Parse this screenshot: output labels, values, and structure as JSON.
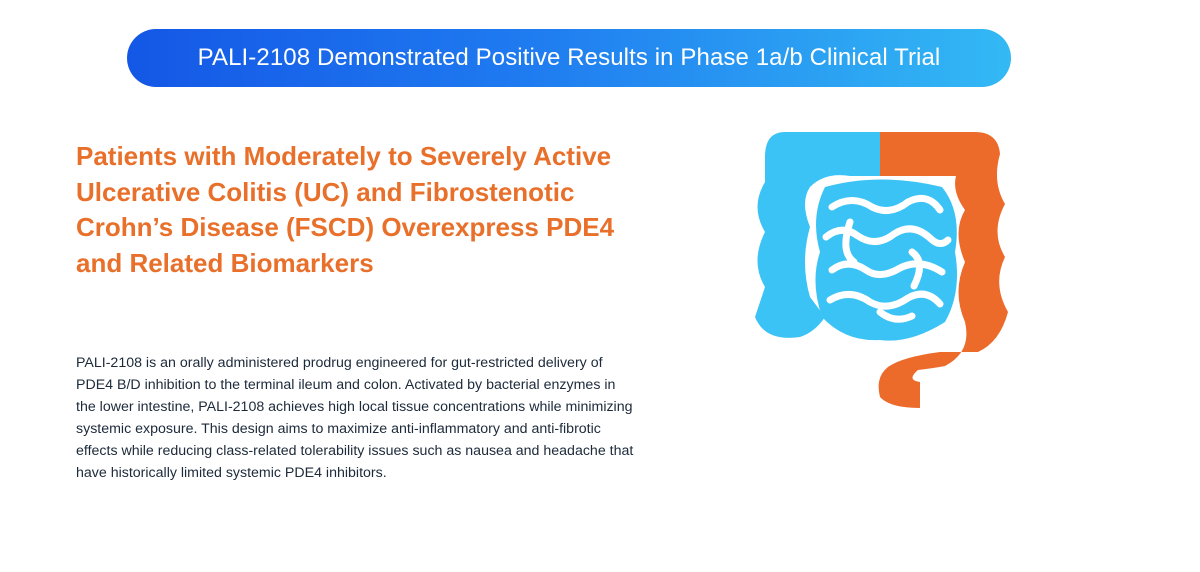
{
  "banner": {
    "title": "PALI-2108 Demonstrated Positive Results in Phase 1a/b Clinical Trial"
  },
  "main": {
    "headline": "Patients with Moderately to Severely Active Ulcerative Colitis (UC) and Fibrostenotic Crohn’s Disease (FSCD) Overexpress PDE4 and Related Biomarkers",
    "body": "PALI-2108 is an orally administered prodrug engineered for gut-restricted delivery of PDE4 B/D inhibition to the terminal ileum and colon. Activated by bacterial enzymes in the lower intestine, PALI-2108 achieves high local tissue concentrations while minimizing systemic exposure. This design aims to maximize anti-inflammatory and anti-fibrotic effects while reducing class-related tolerability issues such as nausea and headache that have historically limited systemic PDE4 inhibitors."
  },
  "illustration": {
    "icon": "intestine-icon",
    "colors": {
      "small_intestine": "#3cc3f5",
      "colon": "#ec6a2a",
      "outline": "#ffffff"
    }
  }
}
